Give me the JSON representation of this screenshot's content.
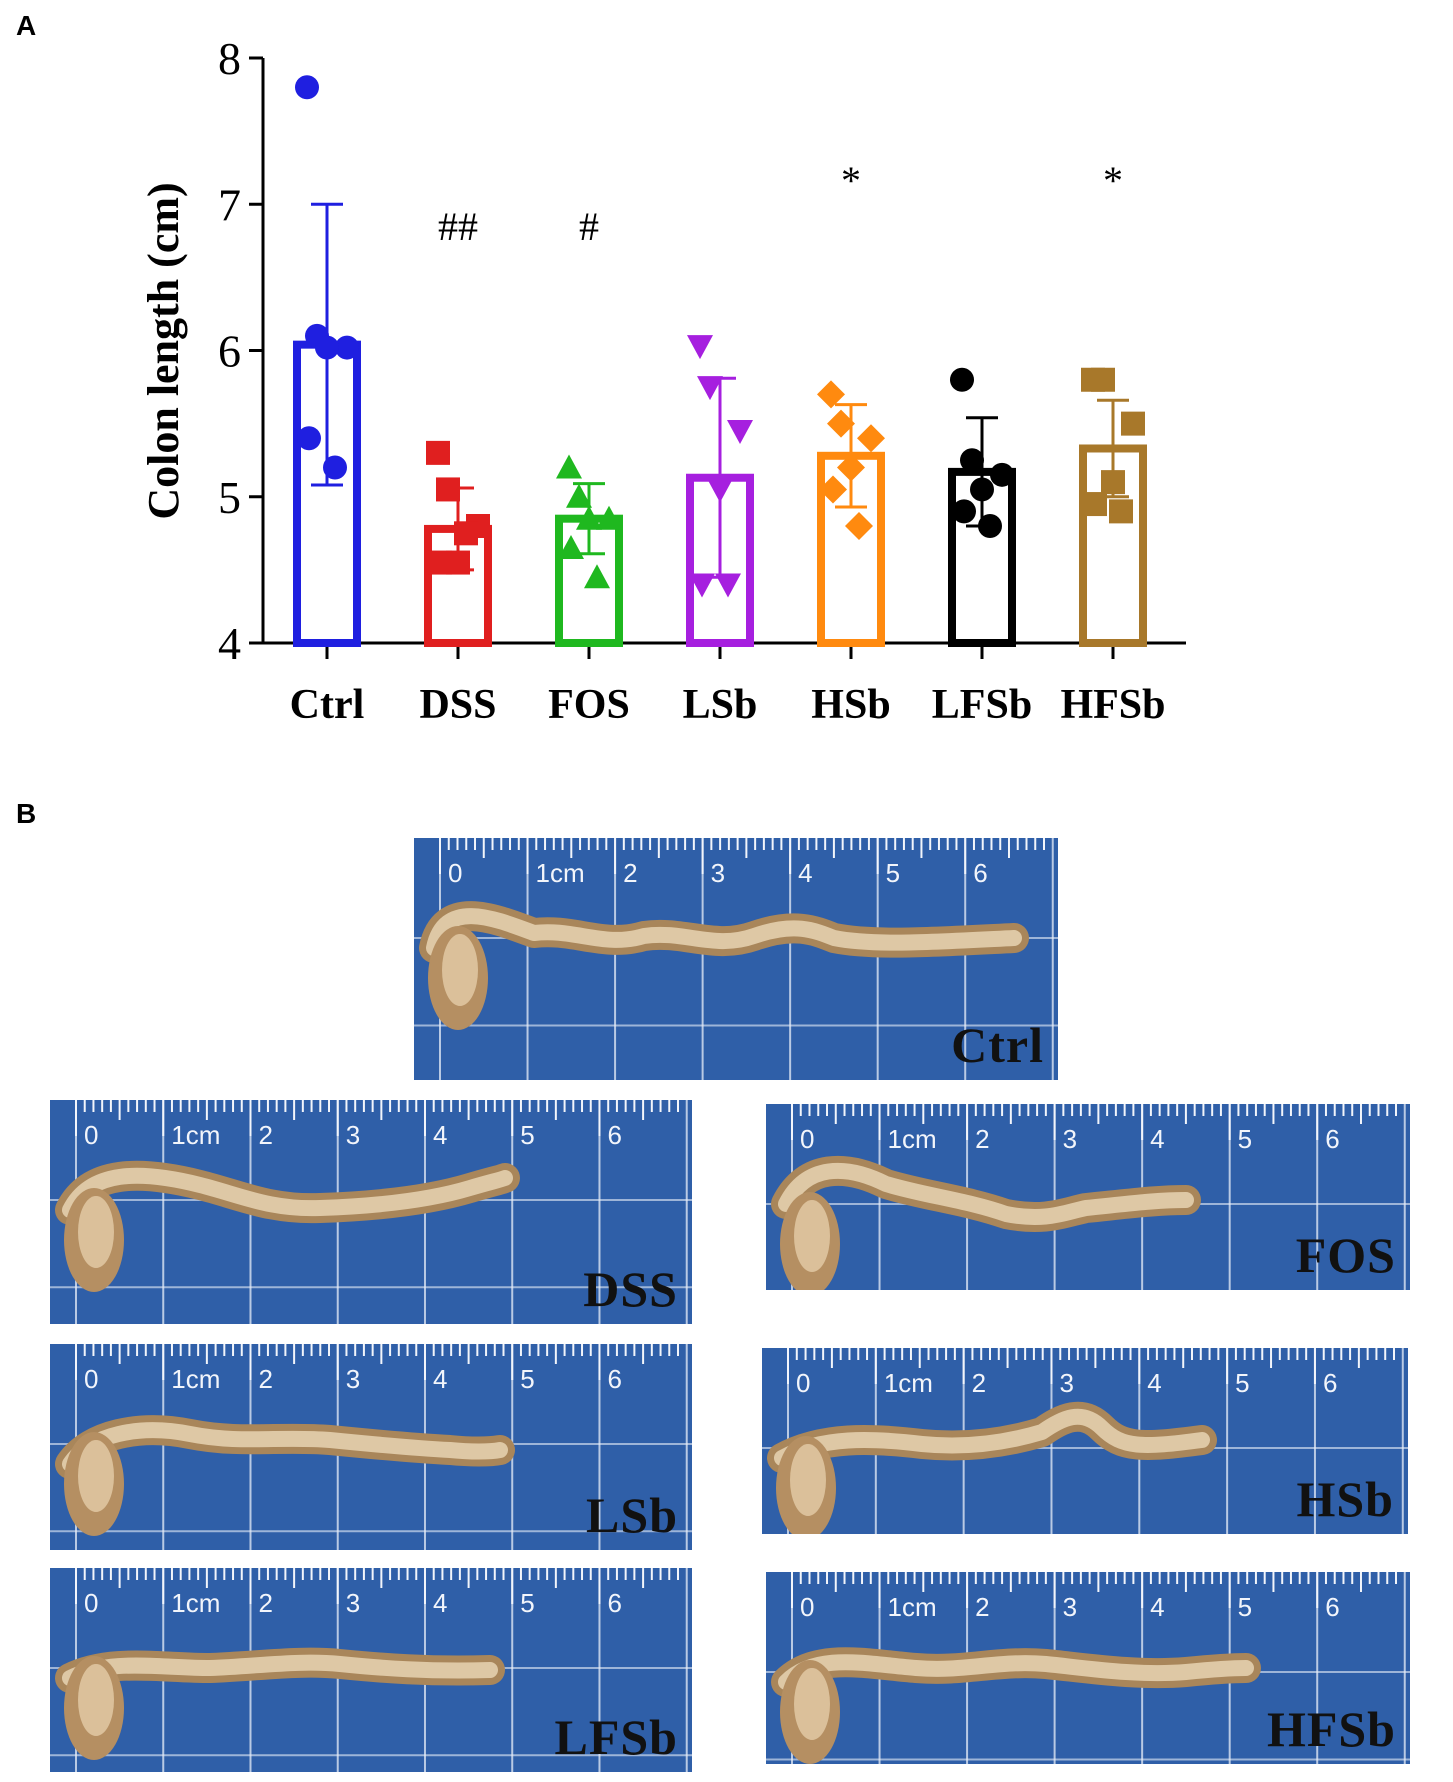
{
  "panels": {
    "a": "A",
    "b": "B"
  },
  "chart_data": {
    "type": "bar",
    "title": "",
    "xlabel": "",
    "ylabel": "Colon length (cm)",
    "ylim": [
      4,
      8
    ],
    "yticks": [
      "4",
      "5",
      "6",
      "7",
      "8"
    ],
    "grid": false,
    "categories": [
      "Ctrl",
      "DSS",
      "FOS",
      "LSb",
      "HSb",
      "LFSb",
      "HFSb"
    ],
    "colors": [
      "#1f1fe0",
      "#e01f1f",
      "#1fb81f",
      "#a61fdf",
      "#ff8a0f",
      "#000000",
      "#a8782a"
    ],
    "markers": [
      "circle",
      "square",
      "triangle-up",
      "triangle-down",
      "diamond",
      "circle",
      "square"
    ],
    "means": [
      6.04,
      4.78,
      4.85,
      5.13,
      5.28,
      5.17,
      5.33
    ],
    "errors": [
      0.96,
      0.28,
      0.24,
      0.68,
      0.35,
      0.37,
      0.33
    ],
    "points": [
      [
        7.8,
        6.1,
        6.02,
        6.02,
        5.4,
        5.2
      ],
      [
        5.3,
        5.05,
        4.8,
        4.55,
        4.55,
        4.75
      ],
      [
        5.2,
        5.0,
        4.85,
        4.85,
        4.65,
        4.45
      ],
      [
        6.03,
        5.75,
        5.45,
        5.05,
        4.4,
        4.4
      ],
      [
        5.7,
        5.5,
        5.4,
        5.2,
        5.05,
        4.8
      ],
      [
        5.8,
        5.25,
        5.15,
        5.05,
        4.9,
        4.8
      ],
      [
        5.8,
        5.8,
        5.5,
        5.1,
        4.95,
        4.9
      ]
    ],
    "significance": [
      "",
      "##",
      "#",
      "",
      "*",
      "",
      "*"
    ]
  },
  "photos": [
    {
      "label": "Ctrl",
      "ruler": [
        "0",
        "1cm",
        "2",
        "3",
        "4",
        "5",
        "6"
      ]
    },
    {
      "label": "DSS",
      "ruler": [
        "0",
        "1cm",
        "2",
        "3",
        "4",
        "5",
        "6"
      ]
    },
    {
      "label": "FOS",
      "ruler": [
        "0",
        "1cm",
        "2",
        "3",
        "4",
        "5",
        "6"
      ]
    },
    {
      "label": "LSb",
      "ruler": [
        "0",
        "1cm",
        "2",
        "3",
        "4",
        "5",
        "6"
      ]
    },
    {
      "label": "HSb",
      "ruler": [
        "0",
        "1cm",
        "2",
        "3",
        "4",
        "5",
        "6"
      ]
    },
    {
      "label": "LFSb",
      "ruler": [
        "0",
        "1cm",
        "2",
        "3",
        "4",
        "5",
        "6"
      ]
    },
    {
      "label": "HFSb",
      "ruler": [
        "0",
        "1cm",
        "2",
        "3",
        "4",
        "5",
        "6"
      ]
    }
  ]
}
